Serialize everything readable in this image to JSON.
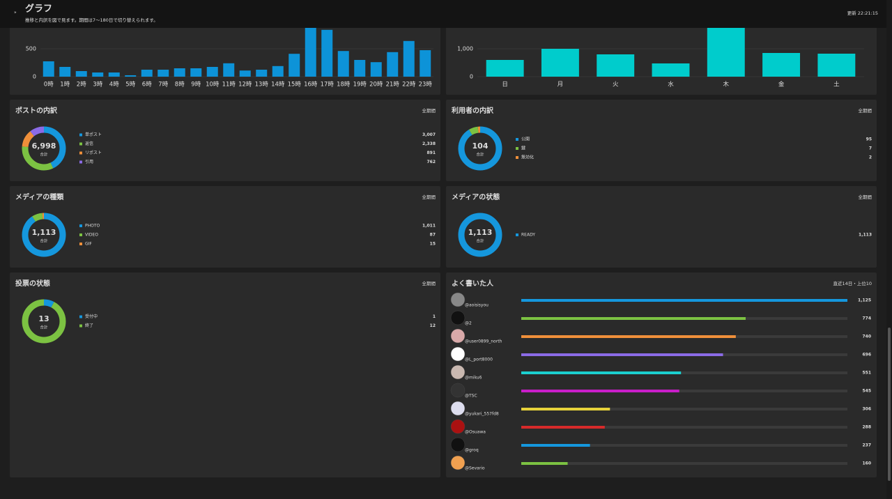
{
  "header": {
    "title": "グラフ",
    "subtitle": "推移と内訳を図で見ます。期間は7〜180日で切り替えられます。",
    "updated": "更新 22:21:15"
  },
  "chart_data": [
    {
      "type": "bar",
      "color": "#0d93d8",
      "categories": [
        "0時",
        "1時",
        "2時",
        "3時",
        "4時",
        "5時",
        "6時",
        "7時",
        "8時",
        "9時",
        "10時",
        "11時",
        "12時",
        "13時",
        "14時",
        "15時",
        "16時",
        "17時",
        "18時",
        "19時",
        "20時",
        "21時",
        "22時",
        "23時"
      ],
      "values": [
        275,
        175,
        100,
        75,
        75,
        25,
        125,
        125,
        150,
        150,
        175,
        240,
        110,
        125,
        190,
        410,
        1000,
        840,
        460,
        300,
        260,
        440,
        640,
        475
      ],
      "ylim": [
        0,
        1000
      ],
      "yticks": [
        0,
        500
      ],
      "grid": true
    },
    {
      "type": "bar",
      "color": "#00cccc",
      "categories": [
        "日",
        "月",
        "火",
        "水",
        "木",
        "金",
        "土"
      ],
      "values": [
        600,
        1000,
        800,
        475,
        1800,
        850,
        825
      ],
      "ylim": [
        0,
        2000
      ],
      "yticks": [
        0,
        {
          "value": 1000,
          "label": "1,000"
        }
      ],
      "grid": true
    },
    {
      "type": "donut",
      "title": "ポストの内訳",
      "period": "全期間",
      "total": "6,998",
      "total_caption": "合計",
      "categories": [
        "単ポスト",
        "返信",
        "リポスト",
        "引用"
      ],
      "values": [
        3007,
        2338,
        891,
        762
      ],
      "value_labels": [
        "3,007",
        "2,338",
        "891",
        "762"
      ],
      "colors": [
        "#1597dd",
        "#7cc242",
        "#ef8f3a",
        "#8b6be6"
      ]
    },
    {
      "type": "donut",
      "title": "利用者の内訳",
      "period": "全期間",
      "total": "104",
      "total_caption": "合計",
      "categories": [
        "公開",
        "鍵",
        "無効化"
      ],
      "values": [
        95,
        7,
        2
      ],
      "value_labels": [
        "95",
        "7",
        "2"
      ],
      "colors": [
        "#1597dd",
        "#7cc242",
        "#ef8f3a"
      ]
    },
    {
      "type": "donut",
      "title": "メディアの種類",
      "period": "全期間",
      "total": "1,113",
      "total_caption": "合計",
      "categories": [
        "PHOTO",
        "VIDEO",
        "GIF"
      ],
      "values": [
        1011,
        87,
        15
      ],
      "value_labels": [
        "1,011",
        "87",
        "15"
      ],
      "colors": [
        "#1597dd",
        "#7cc242",
        "#ef8f3a"
      ]
    },
    {
      "type": "donut",
      "title": "メディアの状態",
      "period": "全期間",
      "total": "1,113",
      "total_caption": "合計",
      "categories": [
        "READY"
      ],
      "values": [
        1113
      ],
      "value_labels": [
        "1,113"
      ],
      "colors": [
        "#1597dd"
      ]
    },
    {
      "type": "donut",
      "title": "投票の状態",
      "period": "全期間",
      "total": "13",
      "total_caption": "合計",
      "categories": [
        "受付中",
        "終了"
      ],
      "values": [
        1,
        12
      ],
      "value_labels": [
        "1",
        "12"
      ],
      "colors": [
        "#1597dd",
        "#7cc242"
      ]
    },
    {
      "type": "hbar",
      "title": "よく書いた人",
      "period": "直近14日・上位10",
      "categories": [
        "@aoisisyou",
        "@2",
        "@user0899_north",
        "@L_port8000",
        "@miku6",
        "@TSC",
        "@yukari_557fd8",
        "@Osuawa",
        "@groq",
        "@Sevario"
      ],
      "values": [
        1125,
        774,
        740,
        696,
        551,
        545,
        306,
        288,
        237,
        160
      ],
      "value_labels": [
        "1,125",
        "774",
        "740",
        "696",
        "551",
        "545",
        "306",
        "288",
        "237",
        "160"
      ],
      "xlim": [
        0,
        1125
      ],
      "colors": [
        "#1597dd",
        "#7cc242",
        "#ef8f3a",
        "#8b6be6",
        "#1ccfcf",
        "#c81ec8",
        "#e6d23a",
        "#d62a2a",
        "#1597dd",
        "#7cc242"
      ]
    }
  ]
}
